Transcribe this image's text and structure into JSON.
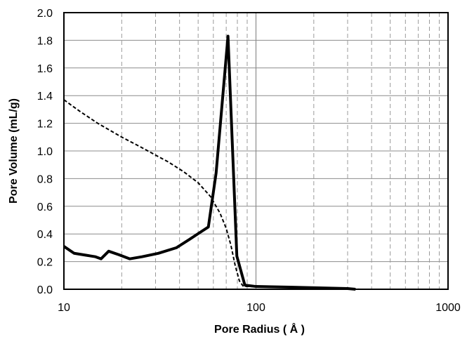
{
  "chart_data": {
    "type": "line",
    "x_scale": "log",
    "xlabel": "Pore Radius ( Å )",
    "ylabel": "Pore Volume  (mL/g)",
    "xlim": [
      10,
      1000
    ],
    "ylim": [
      0,
      2.0
    ],
    "x_tick_labels": [
      "10",
      "100",
      "1000"
    ],
    "y_tick_labels": [
      "0.0",
      "0.2",
      "0.4",
      "0.6",
      "0.8",
      "1.0",
      "1.2",
      "1.4",
      "1.6",
      "1.8",
      "2.0"
    ],
    "grid": {
      "horizontal": "solid",
      "vertical_minor": "dashed",
      "vertical_major": "solid"
    },
    "series": [
      {
        "style": "solid-thick",
        "color": "#000000",
        "points": [
          [
            10,
            0.31
          ],
          [
            11.3,
            0.26
          ],
          [
            13.2,
            0.245
          ],
          [
            14.6,
            0.235
          ],
          [
            15.6,
            0.22
          ],
          [
            17.1,
            0.275
          ],
          [
            19.3,
            0.25
          ],
          [
            22,
            0.22
          ],
          [
            25.5,
            0.235
          ],
          [
            31,
            0.26
          ],
          [
            38.5,
            0.3
          ],
          [
            45,
            0.36
          ],
          [
            51,
            0.41
          ],
          [
            56.5,
            0.45
          ],
          [
            62,
            0.84
          ],
          [
            71.5,
            1.83
          ],
          [
            79.5,
            0.24
          ],
          [
            87.5,
            0.03
          ],
          [
            100,
            0.02
          ],
          [
            150,
            0.015
          ],
          [
            300,
            0.005
          ],
          [
            330,
            0.0
          ]
        ]
      },
      {
        "style": "dashed",
        "color": "#000000",
        "points": [
          [
            10,
            1.37
          ],
          [
            12,
            1.29
          ],
          [
            15,
            1.2
          ],
          [
            20,
            1.1
          ],
          [
            25,
            1.03
          ],
          [
            30,
            0.97
          ],
          [
            35,
            0.92
          ],
          [
            42,
            0.85
          ],
          [
            50,
            0.77
          ],
          [
            58,
            0.67
          ],
          [
            65,
            0.55
          ],
          [
            70,
            0.44
          ],
          [
            74,
            0.32
          ],
          [
            78,
            0.17
          ],
          [
            82,
            0.06
          ],
          [
            86,
            0.02
          ],
          [
            92,
            0.02
          ],
          [
            120,
            0.015
          ],
          [
            200,
            0.01
          ],
          [
            350,
            0.0
          ]
        ]
      }
    ]
  }
}
